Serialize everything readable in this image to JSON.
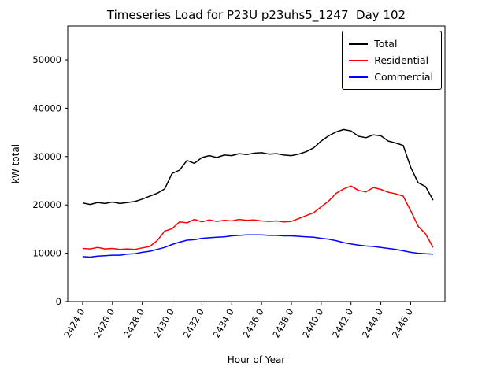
{
  "chart": {
    "title": "Timeseries Load for P23U p23uhs5_1247  Day 102",
    "xlabel": "Hour of Year",
    "ylabel": "kW total"
  },
  "chart_data": {
    "type": "line",
    "title": "Timeseries Load for P23U p23uhs5_1247  Day 102",
    "xlabel": "Hour of Year",
    "ylabel": "kW total",
    "xlim": [
      2423.0,
      2448.3
    ],
    "ylim": [
      0,
      57000
    ],
    "grid": false,
    "legend_position": "upper right",
    "x_ticks": [
      2424,
      2426,
      2428,
      2430,
      2432,
      2434,
      2436,
      2438,
      2440,
      2442,
      2444,
      2446
    ],
    "x_tick_labels": [
      "2424.0",
      "2426.0",
      "2428.0",
      "2430.0",
      "2432.0",
      "2434.0",
      "2436.0",
      "2438.0",
      "2440.0",
      "2442.0",
      "2444.0",
      "2446.0"
    ],
    "y_ticks": [
      0,
      10000,
      20000,
      30000,
      40000,
      50000
    ],
    "y_tick_labels": [
      "0",
      "10000",
      "20000",
      "30000",
      "40000",
      "50000"
    ],
    "x": [
      2424.0,
      2424.5,
      2425.0,
      2425.5,
      2426.0,
      2426.5,
      2427.0,
      2427.5,
      2428.0,
      2428.5,
      2429.0,
      2429.5,
      2430.0,
      2430.5,
      2431.0,
      2431.5,
      2432.0,
      2432.5,
      2433.0,
      2433.5,
      2434.0,
      2434.5,
      2435.0,
      2435.5,
      2436.0,
      2436.5,
      2437.0,
      2437.5,
      2438.0,
      2438.5,
      2439.0,
      2439.5,
      2440.0,
      2440.5,
      2441.0,
      2441.5,
      2442.0,
      2442.5,
      2443.0,
      2443.5,
      2444.0,
      2444.5,
      2445.0,
      2445.5,
      2446.0,
      2446.5,
      2447.0,
      2447.5
    ],
    "series": [
      {
        "name": "Total",
        "color": "#000000",
        "values": [
          20400,
          20100,
          20500,
          20300,
          20600,
          20300,
          20500,
          20700,
          21200,
          21800,
          22400,
          23300,
          26500,
          27200,
          29200,
          28600,
          29800,
          30200,
          29800,
          30300,
          30200,
          30600,
          30400,
          30700,
          30800,
          30500,
          30600,
          30300,
          30200,
          30500,
          31000,
          31800,
          33200,
          34300,
          35100,
          35600,
          35300,
          34200,
          33900,
          34500,
          34300,
          33200,
          32800,
          32300,
          27800,
          24600,
          23800,
          21000
        ]
      },
      {
        "name": "Residential",
        "color": "#ff0000",
        "values": [
          11000,
          10900,
          11200,
          10900,
          11000,
          10800,
          10900,
          10800,
          11100,
          11400,
          12600,
          14600,
          15100,
          16500,
          16300,
          17000,
          16500,
          16900,
          16600,
          16800,
          16700,
          17000,
          16800,
          16900,
          16700,
          16600,
          16700,
          16500,
          16600,
          17200,
          17800,
          18400,
          19600,
          20800,
          22400,
          23300,
          23900,
          23000,
          22700,
          23600,
          23200,
          22600,
          22300,
          21800,
          18800,
          15600,
          14000,
          11200
        ]
      },
      {
        "name": "Commercial",
        "color": "#0000ff",
        "values": [
          9300,
          9200,
          9400,
          9500,
          9600,
          9600,
          9800,
          9900,
          10200,
          10400,
          10800,
          11200,
          11800,
          12300,
          12700,
          12800,
          13100,
          13200,
          13300,
          13400,
          13600,
          13700,
          13800,
          13800,
          13800,
          13700,
          13700,
          13600,
          13600,
          13500,
          13400,
          13300,
          13100,
          12900,
          12600,
          12200,
          11900,
          11700,
          11500,
          11400,
          11200,
          11000,
          10800,
          10500,
          10200,
          10000,
          9900,
          9800
        ]
      }
    ]
  }
}
